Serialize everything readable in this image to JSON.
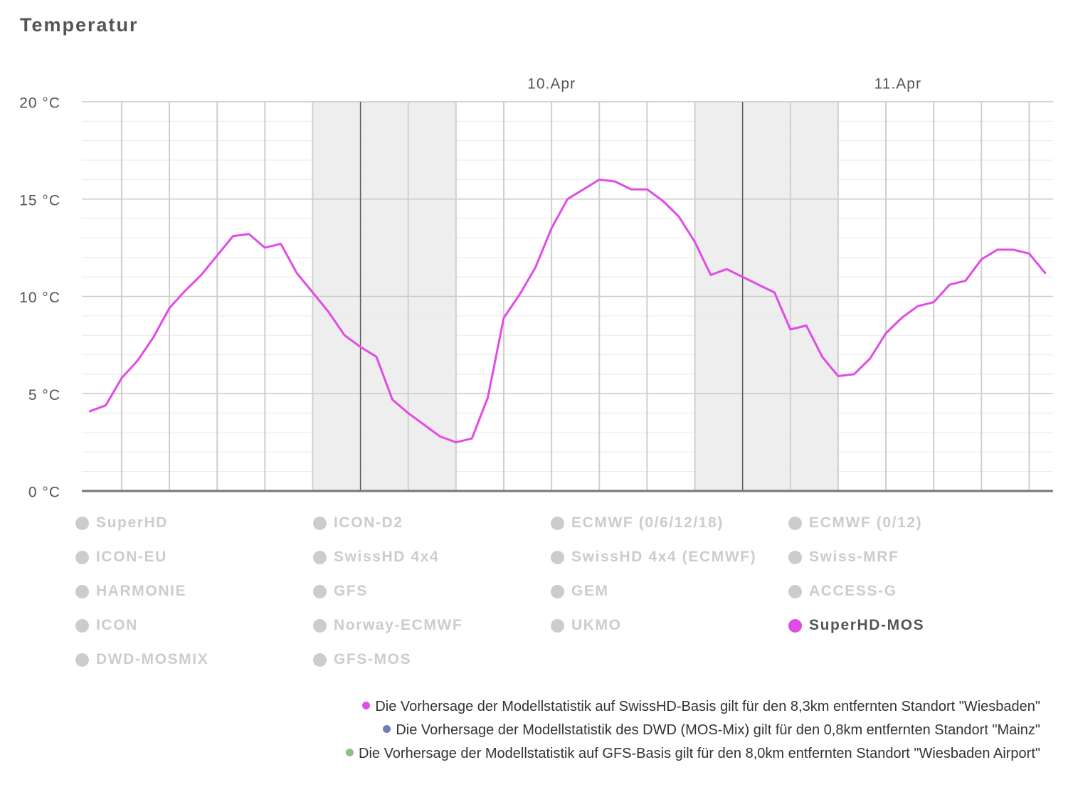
{
  "chart_data": {
    "type": "line",
    "title": "Temperatur",
    "x_axis": {
      "type": "datetime",
      "range": [
        "9.Apr 06:30",
        "11.Apr 19:30"
      ],
      "labels": [
        "10.Apr",
        "11.Apr"
      ],
      "grid": true
    },
    "y_axis": {
      "range": [
        0,
        20
      ],
      "ticks": [
        0,
        5,
        10,
        15,
        20
      ],
      "tick_labels": [
        "0 °C",
        "5 °C",
        "10 °C",
        "15 °C",
        "20 °C"
      ],
      "grid": true,
      "minor_grid": true
    },
    "night_bands": [
      {
        "from": "9.Apr 21:00",
        "to": "10.Apr 06:00"
      },
      {
        "from": "10.Apr 21:00",
        "to": "11.Apr 06:00"
      }
    ],
    "series": [
      {
        "name": "SuperHD",
        "visible": false
      },
      {
        "name": "ICON-D2",
        "visible": false
      },
      {
        "name": "ECMWF (0/6/12/18)",
        "visible": false
      },
      {
        "name": "ECMWF (0/12)",
        "visible": false
      },
      {
        "name": "ICON-EU",
        "visible": false
      },
      {
        "name": "SwissHD 4x4",
        "visible": false
      },
      {
        "name": "SwissHD 4x4 (ECMWF)",
        "visible": false
      },
      {
        "name": "Swiss-MRF",
        "visible": false
      },
      {
        "name": "HARMONIE",
        "visible": false
      },
      {
        "name": "GFS",
        "visible": false
      },
      {
        "name": "GEM",
        "visible": false
      },
      {
        "name": "ACCESS-G",
        "visible": false
      },
      {
        "name": "ICON",
        "visible": false
      },
      {
        "name": "Norway-ECMWF",
        "visible": false
      },
      {
        "name": "UKMO",
        "visible": false
      },
      {
        "name": "SuperHD-MOS",
        "visible": true,
        "color": "#e14ce6",
        "x": [
          "9.Apr 07:00",
          "9.Apr 08:00",
          "9.Apr 09:00",
          "9.Apr 10:00",
          "9.Apr 11:00",
          "9.Apr 12:00",
          "9.Apr 13:00",
          "9.Apr 14:00",
          "9.Apr 15:00",
          "9.Apr 16:00",
          "9.Apr 17:00",
          "9.Apr 18:00",
          "9.Apr 19:00",
          "9.Apr 20:00",
          "9.Apr 21:00",
          "9.Apr 22:00",
          "9.Apr 23:00",
          "10.Apr 00:00",
          "10.Apr 01:00",
          "10.Apr 02:00",
          "10.Apr 03:00",
          "10.Apr 04:00",
          "10.Apr 05:00",
          "10.Apr 06:00",
          "10.Apr 07:00",
          "10.Apr 08:00",
          "10.Apr 09:00",
          "10.Apr 10:00",
          "10.Apr 11:00",
          "10.Apr 12:00",
          "10.Apr 13:00",
          "10.Apr 14:00",
          "10.Apr 15:00",
          "10.Apr 16:00",
          "10.Apr 17:00",
          "10.Apr 18:00",
          "10.Apr 19:00",
          "10.Apr 20:00",
          "10.Apr 21:00",
          "10.Apr 22:00",
          "10.Apr 23:00",
          "11.Apr 00:00",
          "11.Apr 01:00",
          "11.Apr 02:00",
          "11.Apr 03:00",
          "11.Apr 04:00",
          "11.Apr 05:00",
          "11.Apr 06:00",
          "11.Apr 07:00",
          "11.Apr 08:00",
          "11.Apr 09:00",
          "11.Apr 10:00",
          "11.Apr 11:00",
          "11.Apr 12:00",
          "11.Apr 13:00",
          "11.Apr 14:00",
          "11.Apr 15:00",
          "11.Apr 16:00",
          "11.Apr 17:00",
          "11.Apr 18:00",
          "11.Apr 19:00"
        ],
        "values": [
          4.1,
          4.4,
          5.8,
          6.7,
          7.9,
          9.4,
          10.3,
          11.1,
          12.1,
          13.1,
          13.2,
          12.5,
          12.7,
          11.2,
          10.2,
          9.2,
          8.0,
          7.4,
          6.9,
          4.7,
          4.0,
          3.4,
          2.8,
          2.5,
          2.7,
          4.8,
          8.9,
          10.1,
          11.5,
          13.5,
          15.0,
          15.5,
          16.0,
          15.9,
          15.5,
          15.5,
          14.9,
          14.1,
          12.8,
          11.1,
          11.4,
          11.0,
          10.6,
          10.2,
          8.3,
          8.5,
          6.9,
          5.9,
          6.0,
          6.8,
          8.1,
          8.9,
          9.5,
          9.7,
          10.6,
          10.8,
          11.9,
          12.4,
          12.4,
          12.2,
          11.2
        ]
      },
      {
        "name": "DWD-MOSMIX",
        "visible": false
      },
      {
        "name": "GFS-MOS",
        "visible": false
      }
    ],
    "legend": {
      "position": "bottom",
      "inactive_color": "#cccccc"
    }
  },
  "footnotes": [
    {
      "text": "Die Vorhersage der Modellstatistik auf SwissHD-Basis gilt für den 8,3km entfernten Standort \"Wiesbaden\"",
      "color": "#e14ce6"
    },
    {
      "text": "Die Vorhersage der Modellstatistik des DWD (MOS-Mix) gilt für den 0,8km entfernten Standort \"Mainz\"",
      "color": "#6c7fb6"
    },
    {
      "text": "Die Vorhersage der Modellstatistik auf GFS-Basis gilt für den 8,0km entfernten Standort \"Wiesbaden Airport\"",
      "color": "#8dbf8b"
    }
  ]
}
